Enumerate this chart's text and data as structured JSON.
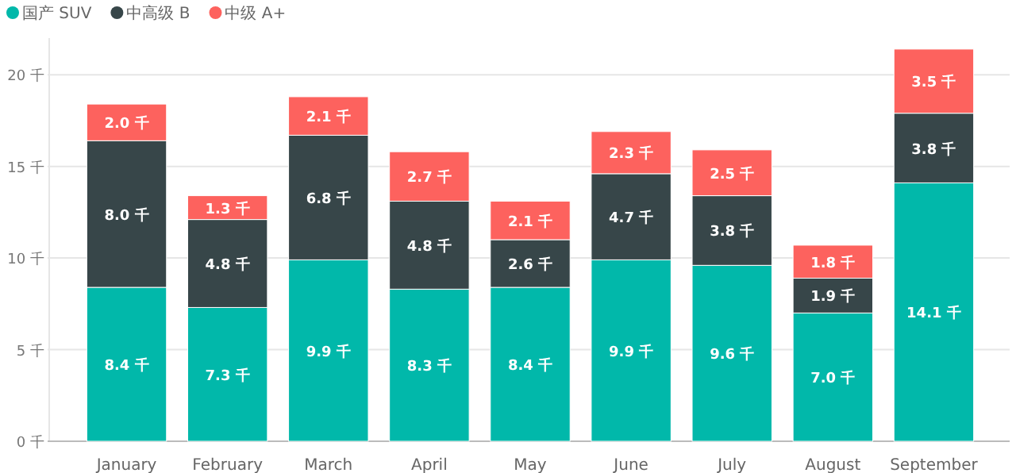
{
  "chart_data": {
    "type": "bar",
    "stacked": true,
    "categories": [
      "January",
      "February",
      "March",
      "April",
      "May",
      "June",
      "July",
      "August",
      "September"
    ],
    "series": [
      {
        "name": "国产 SUV",
        "color": "#01b8aa",
        "values": [
          8.4,
          7.3,
          9.9,
          8.3,
          8.4,
          9.9,
          9.6,
          7.0,
          14.1
        ],
        "value_labels": [
          "8.4 千",
          "7.3 千",
          "9.9 千",
          "8.3 千",
          "8.4 千",
          "9.9 千",
          "9.6 千",
          "7.0 千",
          "14.1 千"
        ]
      },
      {
        "name": "中高级 B",
        "color": "#374649",
        "values": [
          8.0,
          4.8,
          6.8,
          4.8,
          2.6,
          4.7,
          3.8,
          1.9,
          3.8
        ],
        "value_labels": [
          "8.0 千",
          "4.8 千",
          "6.8 千",
          "4.8 千",
          "2.6 千",
          "4.7 千",
          "3.8 千",
          "1.9 千",
          "3.8 千"
        ]
      },
      {
        "name": "中级 A+",
        "color": "#fd625e",
        "values": [
          2.0,
          1.3,
          2.1,
          2.7,
          2.1,
          2.3,
          2.5,
          1.8,
          3.5
        ],
        "value_labels": [
          "2.0 千",
          "1.3 千",
          "2.1 千",
          "2.7 千",
          "2.1 千",
          "2.3 千",
          "2.5 千",
          "1.8 千",
          "3.5 千"
        ]
      }
    ],
    "ylim": [
      0,
      22
    ],
    "yticks": [
      {
        "value": 0,
        "label": "0 千"
      },
      {
        "value": 5,
        "label": "5 千"
      },
      {
        "value": 10,
        "label": "10 千"
      },
      {
        "value": 15,
        "label": "15 千"
      },
      {
        "value": 20,
        "label": "20 千"
      }
    ],
    "grid": "y",
    "legend": "top left"
  }
}
